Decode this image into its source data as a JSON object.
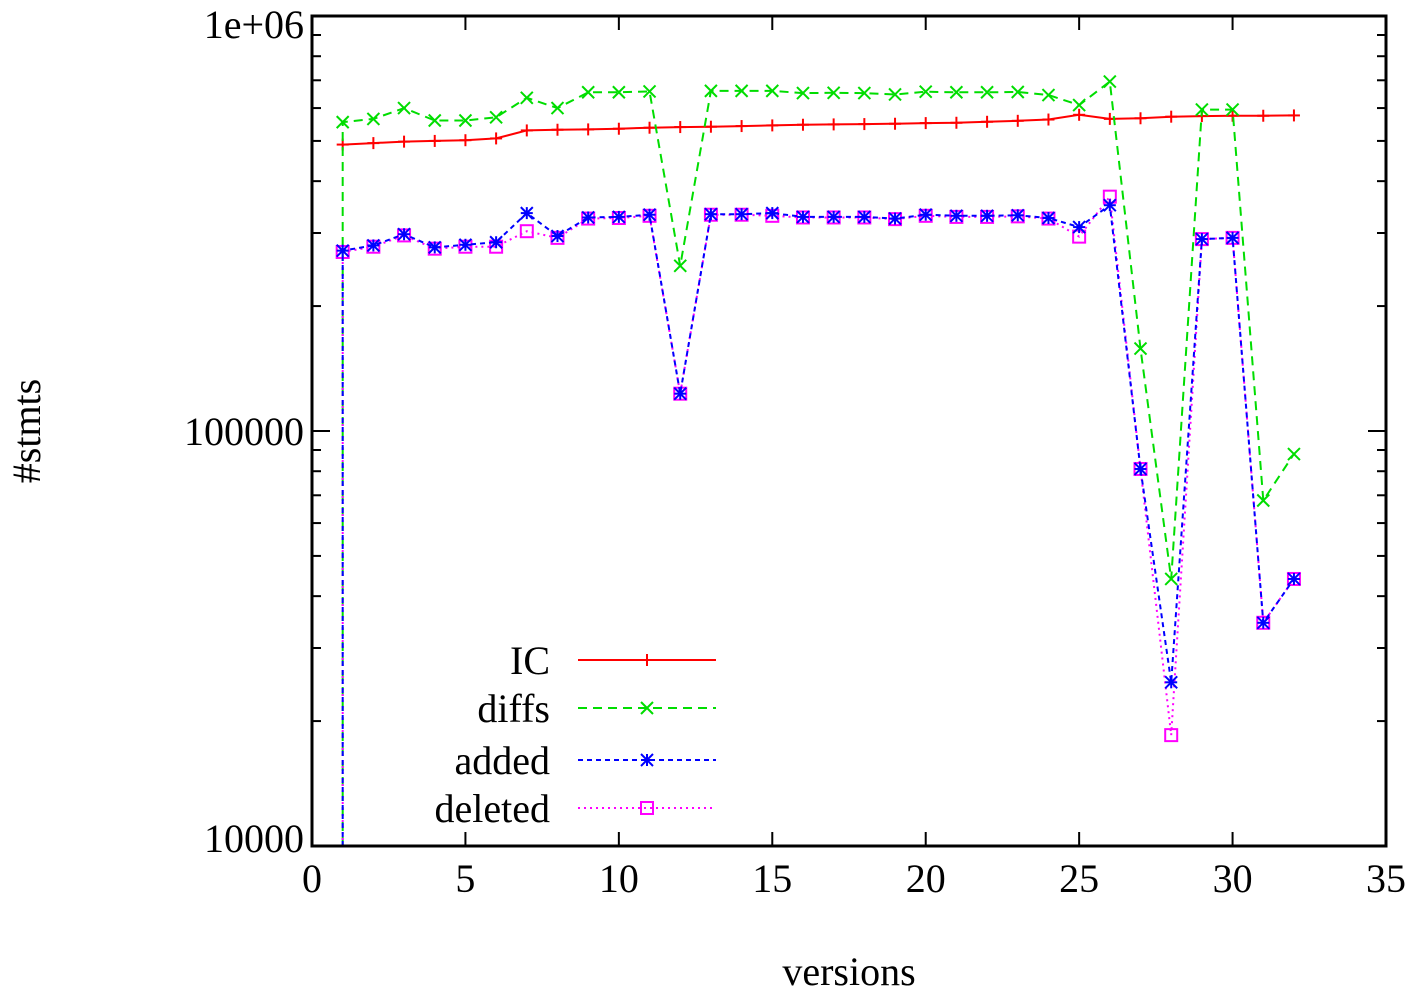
{
  "chart_data": {
    "type": "line",
    "title": "",
    "xlabel": "versions",
    "ylabel": "#stmts",
    "xlim": [
      0,
      35
    ],
    "ylim": [
      10000,
      1000000
    ],
    "yscale": "log",
    "grid": false,
    "legend_position": "bottom-left",
    "x_ticks": [
      0,
      5,
      10,
      15,
      20,
      25,
      30,
      35
    ],
    "x_tick_labels": [
      "0",
      "5",
      "10",
      "15",
      "20",
      "25",
      "30",
      "35"
    ],
    "y_ticks": [
      10000,
      100000,
      1000000
    ],
    "y_tick_labels": [
      "10000",
      "100000",
      "1e+06"
    ],
    "series": [
      {
        "name": "IC",
        "color": "#ff0000",
        "marker": "plus",
        "dash": "",
        "x": [
          1,
          2,
          3,
          4,
          5,
          6,
          7,
          8,
          9,
          10,
          11,
          12,
          13,
          14,
          15,
          16,
          17,
          18,
          19,
          20,
          21,
          22,
          23,
          24,
          25,
          26,
          27,
          28,
          29,
          30,
          31,
          32
        ],
        "y": [
          490000,
          494000,
          498000,
          500000,
          502000,
          507000,
          530000,
          532000,
          533000,
          535000,
          538000,
          540000,
          541000,
          543000,
          545000,
          547000,
          548000,
          549000,
          550000,
          552000,
          553000,
          556000,
          559000,
          563000,
          578000,
          565000,
          567000,
          572000,
          574000,
          575000,
          575000,
          576000
        ]
      },
      {
        "name": "diffs",
        "color": "#00dd00",
        "marker": "x",
        "dash": "9,6",
        "x": [
          1,
          2,
          3,
          4,
          5,
          6,
          7,
          8,
          9,
          10,
          11,
          12,
          13,
          14,
          15,
          16,
          17,
          18,
          19,
          20,
          21,
          22,
          23,
          24,
          25,
          26,
          27,
          28,
          29,
          30,
          31,
          32
        ],
        "y": [
          555000,
          565000,
          600000,
          560000,
          560000,
          570000,
          635000,
          600000,
          655000,
          655000,
          658000,
          250000,
          660000,
          660000,
          660000,
          652000,
          653000,
          652000,
          647000,
          657000,
          655000,
          655000,
          656000,
          645000,
          610000,
          695000,
          158000,
          44000,
          595000,
          595000,
          68000,
          88000
        ]
      },
      {
        "name": "added",
        "color": "#0000ff",
        "marker": "star",
        "dash": "5,4",
        "x": [
          1,
          2,
          3,
          4,
          5,
          6,
          7,
          8,
          9,
          10,
          11,
          12,
          13,
          14,
          15,
          16,
          17,
          18,
          19,
          20,
          21,
          22,
          23,
          24,
          25,
          26,
          27,
          28,
          29,
          30,
          31,
          32
        ],
        "y": [
          272000,
          280000,
          298000,
          277000,
          281000,
          285000,
          335000,
          295000,
          327000,
          328000,
          332000,
          123000,
          333000,
          333000,
          335000,
          328000,
          328000,
          328000,
          325000,
          332000,
          330000,
          330000,
          331000,
          326000,
          310000,
          350000,
          81000,
          24800,
          290000,
          292000,
          34500,
          44000
        ]
      },
      {
        "name": "deleted",
        "color": "#ff00ff",
        "marker": "square",
        "dash": "2,4",
        "x": [
          1,
          2,
          3,
          4,
          5,
          6,
          7,
          8,
          9,
          10,
          11,
          12,
          13,
          14,
          15,
          16,
          17,
          18,
          19,
          20,
          21,
          22,
          23,
          24,
          25,
          26,
          27,
          28,
          29,
          30,
          31,
          32
        ],
        "y": [
          270000,
          278000,
          296000,
          275000,
          278000,
          278000,
          303000,
          292000,
          325000,
          326000,
          330000,
          123000,
          332000,
          332000,
          330000,
          327000,
          327000,
          327000,
          324000,
          330000,
          328000,
          328000,
          329000,
          325000,
          294000,
          367000,
          81000,
          18500,
          290000,
          292000,
          34500,
          44000
        ]
      }
    ]
  }
}
